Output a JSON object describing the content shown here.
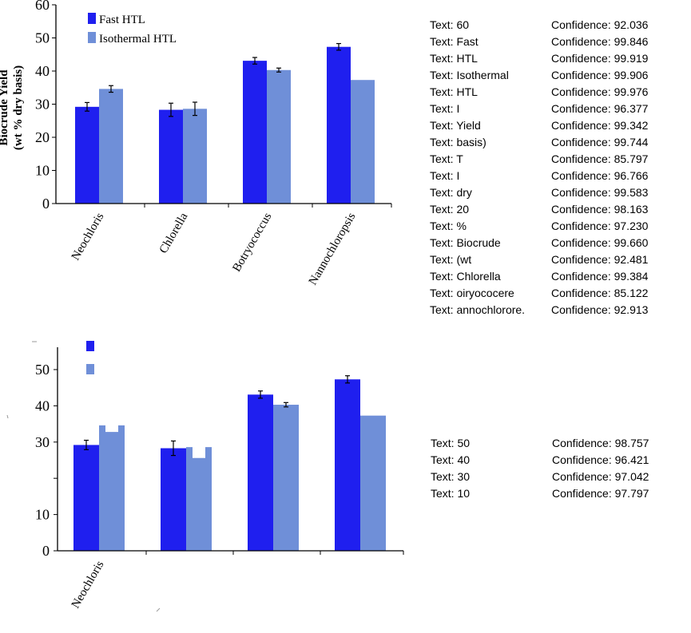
{
  "colors": {
    "fast": "#1f1fef",
    "isothermal": "#6f8fd8",
    "axis": "#000000",
    "background": "#ffffff"
  },
  "chart_data": [
    {
      "type": "bar",
      "title": "",
      "xlabel": "",
      "ylabel": "Biocrude Yield (wt % dry basis)",
      "ylabel_lines": [
        "Biocrude Yield",
        "(wt % dry basis)"
      ],
      "ylim": [
        0,
        60
      ],
      "yticks": [
        0,
        10,
        20,
        30,
        40,
        50,
        60
      ],
      "categories": [
        "Neochloris",
        "Chlorella",
        "Botryococcus",
        "Nannochloropsis"
      ],
      "series": [
        {
          "name": "Fast HTL",
          "values": [
            29.2,
            28.3,
            43.1,
            47.3
          ],
          "errors": [
            1.3,
            2.0,
            1.0,
            1.0
          ]
        },
        {
          "name": "Isothermal HTL",
          "values": [
            34.6,
            28.6,
            40.3,
            37.3
          ],
          "errors": [
            1.0,
            2.0,
            0.6,
            null
          ]
        }
      ],
      "legend": [
        "Fast HTL",
        "Isothermal HTL"
      ],
      "legend_position": "top-left",
      "grid": false
    },
    {
      "type": "bar",
      "title": "",
      "xlabel": "",
      "ylabel": "",
      "ylim": [
        0,
        55
      ],
      "yticks": [
        0,
        10,
        20,
        30,
        40,
        50
      ],
      "ytick_labels": [
        "0",
        "10",
        "",
        "30",
        "40",
        "50"
      ],
      "categories": [
        "Neochloris",
        "",
        "",
        ""
      ],
      "series": [
        {
          "name": "",
          "values": [
            29.2,
            28.3,
            43.1,
            47.3
          ],
          "errors": [
            1.3,
            2.0,
            1.0,
            1.0
          ]
        },
        {
          "name": "",
          "values": [
            34.6,
            28.6,
            40.3,
            37.3
          ],
          "notch": [
            32.8,
            25.6,
            null,
            null
          ],
          "errors": [
            null,
            null,
            0.6,
            null
          ]
        }
      ],
      "legend": [
        "",
        ""
      ],
      "legend_position": "top-left",
      "grid": false
    }
  ],
  "ocr_results": {
    "top": [
      {
        "text": "Text: 60",
        "confidence": "Confidence: 92.036"
      },
      {
        "text": "Text: Fast",
        "confidence": "Confidence: 99.846"
      },
      {
        "text": "Text: HTL",
        "confidence": "Confidence: 99.919"
      },
      {
        "text": "Text: Isothermal",
        "confidence": "Confidence: 99.906"
      },
      {
        "text": "Text: HTL",
        "confidence": "Confidence: 99.976"
      },
      {
        "text": "Text: I",
        "confidence": "Confidence: 96.377"
      },
      {
        "text": "Text: Yield",
        "confidence": "Confidence: 99.342"
      },
      {
        "text": "Text: basis)",
        "confidence": "Confidence: 99.744"
      },
      {
        "text": "Text: T",
        "confidence": "Confidence: 85.797"
      },
      {
        "text": "Text: I",
        "confidence": "Confidence: 96.766"
      },
      {
        "text": "Text: dry",
        "confidence": "Confidence: 99.583"
      },
      {
        "text": "Text: 20",
        "confidence": "Confidence: 98.163"
      },
      {
        "text": "Text: %",
        "confidence": "Confidence: 97.230"
      },
      {
        "text": "Text: Biocrude",
        "confidence": "Confidence: 99.660"
      },
      {
        "text": "Text: (wt",
        "confidence": "Confidence: 92.481"
      },
      {
        "text": "Text: Chlorella",
        "confidence": "Confidence: 99.384"
      },
      {
        "text": "Text: oiryococere",
        "confidence": "Confidence: 85.122"
      },
      {
        "text": "Text: annochlorore.",
        "confidence": "Confidence: 92.913"
      }
    ],
    "bottom": [
      {
        "text": "Text: 50",
        "confidence": "Confidence: 98.757"
      },
      {
        "text": "Text: 40",
        "confidence": "Confidence: 96.421"
      },
      {
        "text": "Text: 30",
        "confidence": "Confidence: 97.042"
      },
      {
        "text": "Text: 10",
        "confidence": "Confidence: 97.797"
      }
    ]
  }
}
